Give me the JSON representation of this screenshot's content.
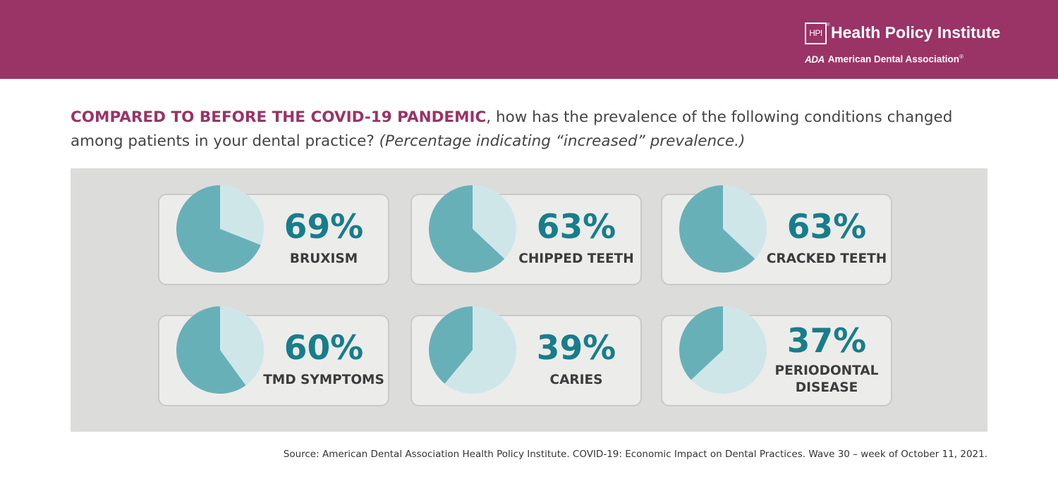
{
  "header": {
    "hpi_badge": "HPI",
    "hpi_name": "Health Policy Institute",
    "ada_mark": "ADA",
    "ada_name": "American Dental Association",
    "ada_reg": "®",
    "background_color": "#9a3366"
  },
  "question": {
    "highlight": "COMPARED TO BEFORE THE COVID-19 PANDEMIC",
    "text": ", how has the prevalence of the following conditions changed among patients in your dental practice? ",
    "italic": "(Percentage indicating “increased” prevalence.)"
  },
  "colors": {
    "filled": "#68b0b8",
    "remainder": "#cfe6e9",
    "value_text": "#187d8a",
    "accent": "#9a3366"
  },
  "chart_data": {
    "type": "pie",
    "metric": "Percentage indicating “increased” prevalence",
    "items": [
      {
        "pct_label": "69%",
        "value": 69,
        "label_lines": [
          "BRUXISM"
        ]
      },
      {
        "pct_label": "63%",
        "value": 63,
        "label_lines": [
          "CHIPPED TEETH"
        ]
      },
      {
        "pct_label": "63%",
        "value": 63,
        "label_lines": [
          "CRACKED TEETH"
        ]
      },
      {
        "pct_label": "60%",
        "value": 60,
        "label_lines": [
          "TMD SYMPTOMS"
        ]
      },
      {
        "pct_label": "39%",
        "value": 39,
        "label_lines": [
          "CARIES"
        ]
      },
      {
        "pct_label": "37%",
        "value": 37,
        "label_lines": [
          "PERIODONTAL",
          "DISEASE"
        ]
      }
    ]
  },
  "source": "Source: American Dental Association Health Policy Institute. COVID-19: Economic Impact on Dental Practices. Wave 30 – week of October 11, 2021."
}
